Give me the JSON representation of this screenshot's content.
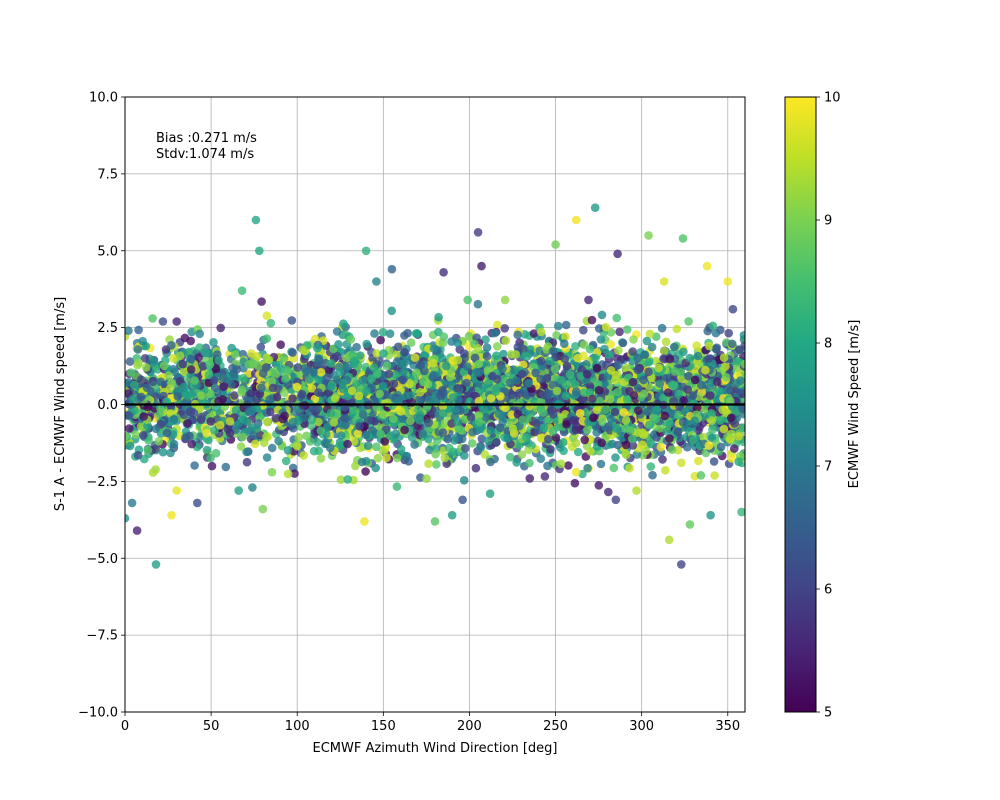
{
  "chart_data": {
    "type": "scatter",
    "title": "",
    "xlabel": "ECMWF Azimuth Wind Direction [deg]",
    "ylabel": "S-1 A - ECMWF Wind speed [m/s]",
    "xlim": [
      0,
      360
    ],
    "ylim": [
      -10,
      10
    ],
    "xticks": [
      0,
      50,
      100,
      150,
      200,
      250,
      300,
      350
    ],
    "xtick_labels": [
      "0",
      "50",
      "100",
      "150",
      "200",
      "250",
      "300",
      "350"
    ],
    "yticks": [
      -10,
      -7.5,
      -5,
      -2.5,
      0,
      2.5,
      5,
      7.5,
      10
    ],
    "ytick_labels": [
      "−10.0",
      "−7.5",
      "−5.0",
      "−2.5",
      "0.0",
      "2.5",
      "5.0",
      "7.5",
      "10.0"
    ],
    "grid": true,
    "reference_line": {
      "y": 0,
      "color": "#000000"
    },
    "annotations": [
      "Bias :0.271 m/s",
      "Stdv:1.074 m/s"
    ],
    "colorbar": {
      "label": "ECMWF Wind Speed [m/s]",
      "range": [
        5,
        10
      ],
      "ticks": [
        5,
        6,
        7,
        8,
        9,
        10
      ],
      "tick_labels": [
        "5",
        "6",
        "7",
        "8",
        "9",
        "10"
      ],
      "colormap": "viridis"
    },
    "points": [
      [
        0,
        -3.7,
        7.5
      ],
      [
        7,
        -4.1,
        5.5
      ],
      [
        18,
        -5.2,
        7.8
      ],
      [
        27,
        -3.6,
        9.9
      ],
      [
        30,
        -2.8,
        9.8
      ],
      [
        42,
        -3.2,
        6.2
      ],
      [
        66,
        -2.8,
        7.8
      ],
      [
        74,
        -2.7,
        7.2
      ],
      [
        80,
        -3.4,
        9.0
      ],
      [
        76,
        6.0,
        8.0
      ],
      [
        78,
        5.0,
        8.0
      ],
      [
        68,
        3.7,
        8.4
      ],
      [
        16,
        2.8,
        8.6
      ],
      [
        22,
        2.7,
        6.2
      ],
      [
        30,
        2.7,
        5.5
      ],
      [
        2,
        2.4,
        7.0
      ],
      [
        140,
        5.0,
        8.2
      ],
      [
        155,
        4.4,
        6.6
      ],
      [
        146,
        4.0,
        7.2
      ],
      [
        139,
        -3.8,
        9.9
      ],
      [
        180,
        -3.8,
        8.7
      ],
      [
        190,
        -3.6,
        7.8
      ],
      [
        185,
        4.3,
        5.7
      ],
      [
        205,
        5.6,
        5.9
      ],
      [
        207,
        4.5,
        5.4
      ],
      [
        250,
        5.2,
        8.9
      ],
      [
        262,
        6.0,
        9.9
      ],
      [
        273,
        6.4,
        7.7
      ],
      [
        286,
        4.9,
        5.6
      ],
      [
        304,
        5.5,
        9.0
      ],
      [
        324,
        5.4,
        8.6
      ],
      [
        338,
        4.5,
        9.9
      ],
      [
        350,
        4.0,
        9.9
      ],
      [
        353,
        3.1,
        6.1
      ],
      [
        313,
        4.0,
        9.7
      ],
      [
        323,
        -5.2,
        6.0
      ],
      [
        316,
        -4.4,
        9.4
      ],
      [
        328,
        -3.9,
        8.8
      ],
      [
        340,
        -3.6,
        7.6
      ],
      [
        358,
        -3.5,
        8.3
      ],
      [
        285,
        -3.1,
        6.0
      ],
      [
        297,
        -2.8,
        9.4
      ],
      [
        262,
        -2.2,
        9.9
      ],
      [
        212,
        -2.9,
        7.8
      ],
      [
        196,
        -3.1,
        6.3
      ]
    ],
    "bulk": {
      "seed": 12345,
      "count": 5000,
      "x_range": [
        0,
        360
      ],
      "bias": 0.271,
      "stdv": 1.074,
      "color_range": [
        5,
        10
      ],
      "line_end_x": 360
    }
  }
}
